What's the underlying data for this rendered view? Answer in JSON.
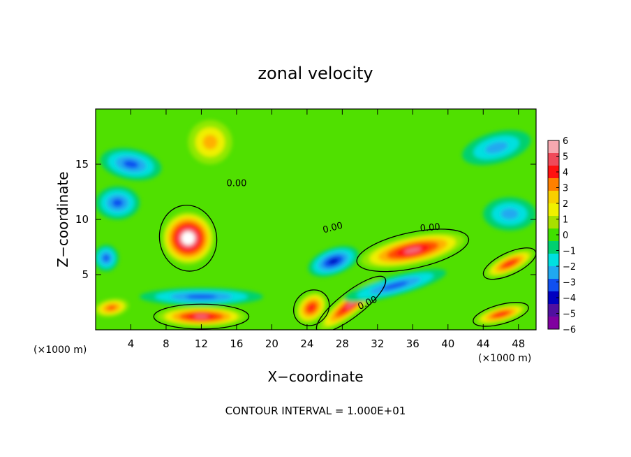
{
  "chart_data": {
    "type": "heatmap",
    "title": "zonal velocity",
    "xlabel": "X−coordinate",
    "ylabel": "Z−coordinate",
    "x_unit_left": "(×1000 m)",
    "x_unit_right": "(×1000 m)",
    "xlim": [
      0,
      50
    ],
    "ylim": [
      0,
      20
    ],
    "xticks": [
      4,
      8,
      12,
      16,
      20,
      24,
      28,
      32,
      36,
      40,
      44,
      48
    ],
    "yticks": [
      5,
      10,
      15
    ],
    "contour_label": "0.00",
    "footer": "CONTOUR INTERVAL = 1.000E+01",
    "colorbar": {
      "ticks": [
        6,
        5,
        4,
        3,
        2,
        1,
        0,
        -1,
        -2,
        -3,
        -4,
        -5,
        -6
      ],
      "tick_labels": [
        "6",
        "5",
        "4",
        "3",
        "2",
        "1",
        "0",
        "−1",
        "−2",
        "−3",
        "−4",
        "−5",
        "−6"
      ],
      "colors": [
        "#f7a8b0",
        "#f04a5a",
        "#ff1010",
        "#ff8000",
        "#f8d000",
        "#f0f000",
        "#a8e000",
        "#40e000",
        "#00d070",
        "#00e0e0",
        "#20a8f0",
        "#1050f0",
        "#0000c0",
        "#5010a0",
        "#8000a0"
      ]
    },
    "features": [
      {
        "kind": "positive",
        "value": 8,
        "x": 10.5,
        "z": 8.3,
        "sx": 3.0,
        "sz": 2.4,
        "rot": -10
      },
      {
        "kind": "positive",
        "value": 6,
        "x": 36,
        "z": 7.2,
        "sx": 6.0,
        "sz": 1.3,
        "rot": -12
      },
      {
        "kind": "positive",
        "value": 6,
        "x": 29,
        "z": 2.3,
        "sx": 4.5,
        "sz": 0.9,
        "rot": -38
      },
      {
        "kind": "positive",
        "value": 6,
        "x": 12,
        "z": 1.2,
        "sx": 5.0,
        "sz": 0.9,
        "rot": 0
      },
      {
        "kind": "positive",
        "value": 5,
        "x": 24.5,
        "z": 2.0,
        "sx": 2.0,
        "sz": 1.2,
        "rot": -45
      },
      {
        "kind": "positive",
        "value": 5,
        "x": 47,
        "z": 6.0,
        "sx": 3.0,
        "sz": 0.8,
        "rot": -25
      },
      {
        "kind": "positive",
        "value": 5,
        "x": 46,
        "z": 1.4,
        "sx": 3.0,
        "sz": 0.7,
        "rot": -15
      },
      {
        "kind": "positive",
        "value": 4,
        "x": 1.8,
        "z": 2.0,
        "sx": 2.0,
        "sz": 0.8,
        "rot": -10
      },
      {
        "kind": "positive",
        "value": 3,
        "x": 13,
        "z": 17,
        "sx": 2.5,
        "sz": 2.0,
        "rot": 0
      },
      {
        "kind": "negative",
        "value": -5,
        "x": 4,
        "z": 15,
        "sx": 3.5,
        "sz": 1.4,
        "rot": 10
      },
      {
        "kind": "negative",
        "value": -5,
        "x": 2.5,
        "z": 11.5,
        "sx": 2.5,
        "sz": 1.5,
        "rot": 0
      },
      {
        "kind": "negative",
        "value": -5,
        "x": 1.2,
        "z": 6.5,
        "sx": 1.4,
        "sz": 1.2,
        "rot": 0
      },
      {
        "kind": "negative",
        "value": -5,
        "x": 12,
        "z": 3.0,
        "sx": 7.0,
        "sz": 0.8,
        "rot": 0
      },
      {
        "kind": "negative",
        "value": -5,
        "x": 34,
        "z": 4.0,
        "sx": 6.0,
        "sz": 0.9,
        "rot": -15
      },
      {
        "kind": "negative",
        "value": -6,
        "x": 27,
        "z": 6.2,
        "sx": 3.0,
        "sz": 1.2,
        "rot": -20
      },
      {
        "kind": "negative",
        "value": -4,
        "x": 45.5,
        "z": 16.5,
        "sx": 4.0,
        "sz": 1.4,
        "rot": -15
      },
      {
        "kind": "negative",
        "value": -3,
        "x": 47,
        "z": 10.5,
        "sx": 3.0,
        "sz": 1.5,
        "rot": 0
      }
    ]
  }
}
